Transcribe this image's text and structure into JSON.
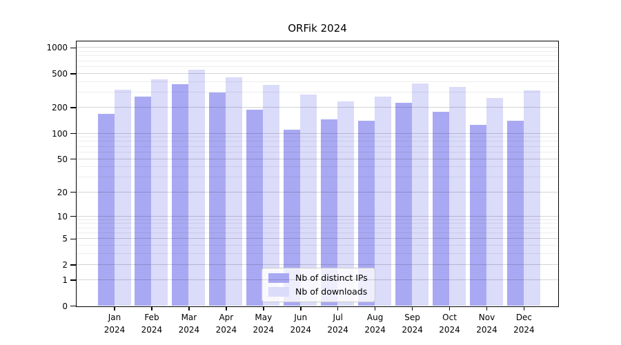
{
  "title": "ORFik 2024",
  "chart_data": {
    "type": "bar",
    "title": "ORFik 2024",
    "categories": [
      "Jan",
      "Feb",
      "Mar",
      "Apr",
      "May",
      "Jun",
      "Jul",
      "Aug",
      "Sep",
      "Oct",
      "Nov",
      "Dec"
    ],
    "year_label": "2024",
    "series": [
      {
        "name": "Nb of distinct IPs",
        "color": "#a9a9f3",
        "values": [
          168,
          266,
          372,
          300,
          190,
          110,
          144,
          140,
          225,
          177,
          126,
          140
        ]
      },
      {
        "name": "Nb of downloads",
        "color": "#dbdbfa",
        "values": [
          320,
          424,
          555,
          451,
          365,
          283,
          234,
          266,
          379,
          350,
          258,
          314
        ]
      }
    ],
    "xlabel": "",
    "ylabel": "",
    "yscale": "log1p",
    "ylim": [
      0,
      1176
    ],
    "yticks": [
      0,
      1,
      2,
      5,
      10,
      20,
      50,
      100,
      200,
      500,
      1000
    ],
    "minor_gridlines": [
      3,
      4,
      6,
      7,
      8,
      9,
      30,
      40,
      60,
      70,
      80,
      90,
      300,
      400,
      600,
      700,
      800,
      900
    ],
    "grid": true,
    "legend_position": "bottom-center"
  },
  "colors": {
    "major_grid": "rgba(0,0,0,0.17)",
    "minor_grid": "rgba(0,0,0,0.07)",
    "spine": "#000000",
    "background": "#ffffff"
  }
}
